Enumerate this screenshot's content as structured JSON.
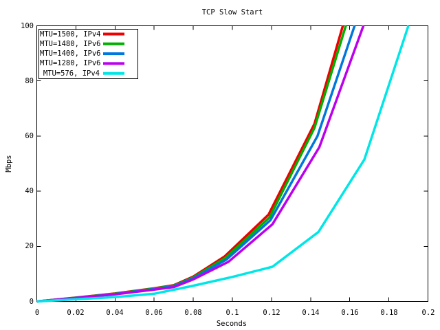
{
  "chart_data": {
    "type": "line",
    "title": "TCP Slow Start",
    "xlabel": "Seconds",
    "ylabel": "Mbps",
    "xlim": [
      0,
      0.2
    ],
    "ylim": [
      0,
      100
    ],
    "grid": false,
    "legend_position": "top-left",
    "xticks": [
      0,
      0.02,
      0.04,
      0.06,
      0.08,
      0.1,
      0.12,
      0.14,
      0.16,
      0.18,
      0.2
    ],
    "xtick_labels": [
      "0",
      "0.02",
      "0.04",
      "0.06",
      "0.08",
      "0.1",
      "0.12",
      "0.14",
      "0.16",
      "0.18",
      "0.2"
    ],
    "yticks": [
      0,
      20,
      40,
      60,
      80,
      100
    ],
    "ytick_labels": [
      "0",
      "20",
      "40",
      "60",
      "80",
      "100"
    ],
    "axis_color": "#000000",
    "series": [
      {
        "name": "MTU=1500, IPv4",
        "color": "#ee0000",
        "points": [
          [
            0,
            0
          ],
          [
            0.02,
            1.4
          ],
          [
            0.04,
            2.9
          ],
          [
            0.06,
            4.8
          ],
          [
            0.07,
            5.9
          ],
          [
            0.08,
            9.0
          ],
          [
            0.096,
            16.3
          ],
          [
            0.1185,
            31.5
          ],
          [
            0.142,
            64.5
          ],
          [
            0.1565,
            100
          ]
        ]
      },
      {
        "name": "MTU=1480, IPv6",
        "color": "#00b000",
        "points": [
          [
            0,
            0
          ],
          [
            0.02,
            1.35
          ],
          [
            0.04,
            2.8
          ],
          [
            0.06,
            4.7
          ],
          [
            0.07,
            5.7
          ],
          [
            0.08,
            8.7
          ],
          [
            0.0965,
            15.8
          ],
          [
            0.119,
            30.5
          ],
          [
            0.142,
            63.0
          ],
          [
            0.158,
            100
          ]
        ]
      },
      {
        "name": "MTU=1400, IPv6",
        "color": "#0077dd",
        "points": [
          [
            0,
            0
          ],
          [
            0.02,
            1.3
          ],
          [
            0.04,
            2.7
          ],
          [
            0.06,
            4.5
          ],
          [
            0.07,
            5.5
          ],
          [
            0.08,
            8.4
          ],
          [
            0.097,
            15.2
          ],
          [
            0.1195,
            29.5
          ],
          [
            0.1435,
            60.0
          ],
          [
            0.1625,
            100
          ]
        ]
      },
      {
        "name": "MTU=1280, IPv6",
        "color": "#bb00ee",
        "points": [
          [
            0,
            0
          ],
          [
            0.02,
            1.25
          ],
          [
            0.04,
            2.6
          ],
          [
            0.06,
            4.3
          ],
          [
            0.07,
            5.2
          ],
          [
            0.08,
            8.0
          ],
          [
            0.098,
            14.4
          ],
          [
            0.1205,
            28.0
          ],
          [
            0.1445,
            56.0
          ],
          [
            0.167,
            100
          ]
        ]
      },
      {
        "name": "MTU=576, IPv4",
        "color": "#00e6e6",
        "points": [
          [
            0,
            0
          ],
          [
            0.02,
            0.8
          ],
          [
            0.04,
            1.6
          ],
          [
            0.06,
            2.8
          ],
          [
            0.08,
            5.7
          ],
          [
            0.1,
            8.9
          ],
          [
            0.1205,
            12.6
          ],
          [
            0.144,
            25.2
          ],
          [
            0.1675,
            51.5
          ],
          [
            0.19,
            100
          ]
        ]
      }
    ]
  }
}
